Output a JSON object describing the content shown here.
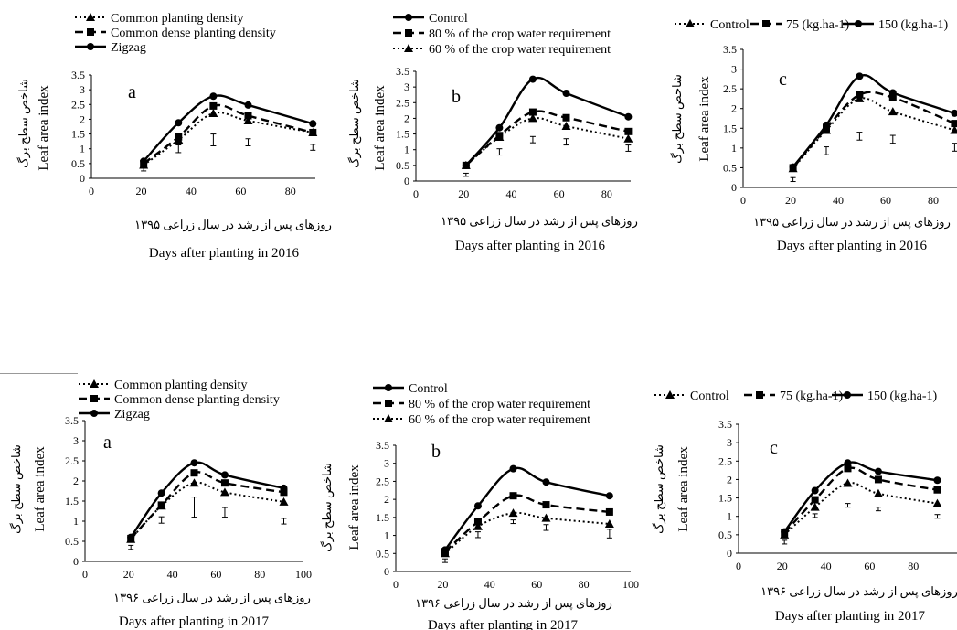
{
  "legends": {
    "density": [
      "Common planting density",
      "Common dense planting density",
      "Zigzag"
    ],
    "water": [
      "Control",
      "80 % of the crop water requirement",
      "60 % of the crop water requirement"
    ],
    "nitrogen": [
      "Control",
      "75 (kg.ha-1)",
      "150 (kg.ha-1)"
    ]
  },
  "axis_text": {
    "ylabel_persian": "شاخص سطح برگ",
    "ylabel": "Leaf area index",
    "xlabel_persian_1395": "روزهای پس از رشد در سال زراعی ۱۳۹۵",
    "xlabel_persian_1396": "روزهای پس از رشد در سال زراعی ۱۳۹۶",
    "xlabel_2016": "Days after planting in 2016",
    "xlabel_2017": "Days after planting in 2017"
  },
  "chart_data": [
    {
      "type": "line",
      "panel_label": "a",
      "legend_key": "density",
      "year_key": "2016",
      "x": [
        21,
        35,
        49,
        63,
        89
      ],
      "xlim": [
        0,
        90
      ],
      "xticks": [
        0,
        20,
        40,
        60,
        80
      ],
      "ylim": [
        0,
        3.5
      ],
      "yticks": [
        0,
        0.5,
        1,
        1.5,
        2,
        2.5,
        3,
        3.5
      ],
      "series": [
        {
          "name": "Common planting density",
          "style": "dotted",
          "marker": "triangle",
          "values": [
            0.45,
            1.3,
            2.2,
            1.95,
            1.55
          ]
        },
        {
          "name": "Common dense planting density",
          "style": "dashed",
          "marker": "square",
          "values": [
            0.5,
            1.4,
            2.45,
            2.12,
            1.55
          ]
        },
        {
          "name": "Zigzag",
          "style": "solid",
          "marker": "circle",
          "values": [
            0.58,
            1.88,
            2.78,
            2.48,
            1.85
          ]
        }
      ],
      "errors": [
        {
          "x": 21,
          "y": 0.3,
          "e": 0.05
        },
        {
          "x": 35,
          "y": 1.0,
          "e": 0.13
        },
        {
          "x": 49,
          "y": 1.3,
          "e": 0.2
        },
        {
          "x": 63,
          "y": 1.22,
          "e": 0.12
        },
        {
          "x": 89,
          "y": 1.05,
          "e": 0.1
        }
      ]
    },
    {
      "type": "line",
      "panel_label": "b",
      "legend_key": "water",
      "year_key": "2016",
      "x": [
        21,
        35,
        49,
        63,
        89
      ],
      "xlim": [
        0,
        90
      ],
      "xticks": [
        0,
        20,
        40,
        60,
        80
      ],
      "ylim": [
        0,
        3.5
      ],
      "yticks": [
        0,
        0.5,
        1,
        1.5,
        2,
        2.5,
        3,
        3.5
      ],
      "series": [
        {
          "name": "Control",
          "style": "solid",
          "marker": "circle",
          "values": [
            0.5,
            1.7,
            3.25,
            2.8,
            2.05
          ]
        },
        {
          "name": "80 % of the crop water requirement",
          "style": "dashed",
          "marker": "square",
          "values": [
            0.5,
            1.45,
            2.2,
            2.02,
            1.58
          ]
        },
        {
          "name": "60 % of the crop water requirement",
          "style": "dotted",
          "marker": "triangle",
          "values": [
            0.5,
            1.4,
            2.0,
            1.75,
            1.35
          ]
        }
      ],
      "errors": [
        {
          "x": 21,
          "y": 0.2,
          "e": 0.05
        },
        {
          "x": 35,
          "y": 0.93,
          "e": 0.1
        },
        {
          "x": 49,
          "y": 1.32,
          "e": 0.1
        },
        {
          "x": 63,
          "y": 1.25,
          "e": 0.1
        },
        {
          "x": 89,
          "y": 1.05,
          "e": 0.1
        }
      ]
    },
    {
      "type": "line",
      "panel_label": "c",
      "legend_key": "nitrogen",
      "year_key": "2016",
      "x": [
        21,
        35,
        49,
        63,
        89
      ],
      "xlim": [
        0,
        90
      ],
      "xticks": [
        0,
        20,
        40,
        60,
        80
      ],
      "ylim": [
        0,
        3.5
      ],
      "yticks": [
        0,
        0.5,
        1,
        1.5,
        2,
        2.5,
        3,
        3.5
      ],
      "series": [
        {
          "name": "Control",
          "style": "dotted",
          "marker": "triangle",
          "values": [
            0.48,
            1.45,
            2.25,
            1.92,
            1.45
          ]
        },
        {
          "name": "75 (kg.ha-1)",
          "style": "dashed",
          "marker": "square",
          "values": [
            0.5,
            1.5,
            2.35,
            2.28,
            1.62
          ]
        },
        {
          "name": "150 (kg.ha-1)",
          "style": "solid",
          "marker": "circle",
          "values": [
            0.52,
            1.58,
            2.82,
            2.4,
            1.88
          ]
        }
      ],
      "errors": [
        {
          "x": 21,
          "y": 0.2,
          "e": 0.05
        },
        {
          "x": 35,
          "y": 0.93,
          "e": 0.1
        },
        {
          "x": 49,
          "y": 1.3,
          "e": 0.1
        },
        {
          "x": 63,
          "y": 1.22,
          "e": 0.1
        },
        {
          "x": 89,
          "y": 1.02,
          "e": 0.1
        }
      ]
    },
    {
      "type": "line",
      "panel_label": "a",
      "legend_key": "density",
      "year_key": "2017",
      "x": [
        21,
        35,
        50,
        64,
        91
      ],
      "xlim": [
        0,
        100
      ],
      "xticks": [
        0,
        20,
        40,
        60,
        80,
        100
      ],
      "ylim": [
        0,
        3.5
      ],
      "yticks": [
        0,
        0.5,
        1,
        1.5,
        2,
        2.5,
        3,
        3.5
      ],
      "series": [
        {
          "name": "Common planting density",
          "style": "dotted",
          "marker": "triangle",
          "values": [
            0.55,
            1.38,
            1.95,
            1.72,
            1.48
          ]
        },
        {
          "name": "Common dense planting density",
          "style": "dashed",
          "marker": "square",
          "values": [
            0.57,
            1.4,
            2.2,
            1.95,
            1.72
          ]
        },
        {
          "name": "Zigzag",
          "style": "solid",
          "marker": "circle",
          "values": [
            0.6,
            1.7,
            2.45,
            2.15,
            1.82
          ]
        }
      ],
      "errors": [
        {
          "x": 21,
          "y": 0.35,
          "e": 0.05
        },
        {
          "x": 35,
          "y": 1.03,
          "e": 0.08
        },
        {
          "x": 50,
          "y": 1.35,
          "e": 0.25
        },
        {
          "x": 64,
          "y": 1.22,
          "e": 0.12
        },
        {
          "x": 91,
          "y": 1.0,
          "e": 0.07
        }
      ]
    },
    {
      "type": "line",
      "panel_label": "b",
      "legend_key": "water",
      "year_key": "2017",
      "x": [
        21,
        35,
        50,
        64,
        91
      ],
      "xlim": [
        0,
        100
      ],
      "xticks": [
        0,
        20,
        40,
        60,
        80,
        100
      ],
      "ylim": [
        0,
        3.5
      ],
      "yticks": [
        0,
        0.5,
        1,
        1.5,
        2,
        2.5,
        3,
        3.5
      ],
      "series": [
        {
          "name": "Control",
          "style": "solid",
          "marker": "circle",
          "values": [
            0.6,
            1.82,
            2.85,
            2.48,
            2.1
          ]
        },
        {
          "name": "80 % of the crop water requirement",
          "style": "dashed",
          "marker": "square",
          "values": [
            0.55,
            1.38,
            2.1,
            1.85,
            1.65
          ]
        },
        {
          "name": "60 % of the crop water requirement",
          "style": "dotted",
          "marker": "triangle",
          "values": [
            0.5,
            1.25,
            1.62,
            1.48,
            1.32
          ]
        }
      ],
      "errors": [
        {
          "x": 21,
          "y": 0.3,
          "e": 0.05
        },
        {
          "x": 35,
          "y": 1.02,
          "e": 0.08
        },
        {
          "x": 50,
          "y": 1.38,
          "e": 0.05
        },
        {
          "x": 64,
          "y": 1.22,
          "e": 0.08
        },
        {
          "x": 91,
          "y": 1.05,
          "e": 0.12
        }
      ]
    },
    {
      "type": "line",
      "panel_label": "c",
      "legend_key": "nitrogen",
      "year_key": "2017",
      "x": [
        21,
        35,
        50,
        64,
        91
      ],
      "xlim": [
        0,
        100
      ],
      "xticks": [
        0,
        20,
        40,
        60,
        80
      ],
      "ylim": [
        0,
        3.5
      ],
      "yticks": [
        0,
        0.5,
        1,
        1.5,
        2,
        2.5,
        3,
        3.5
      ],
      "series": [
        {
          "name": "Control",
          "style": "dotted",
          "marker": "triangle",
          "values": [
            0.5,
            1.25,
            1.9,
            1.62,
            1.35
          ]
        },
        {
          "name": "75 (kg.ha-1)",
          "style": "dashed",
          "marker": "square",
          "values": [
            0.55,
            1.45,
            2.3,
            2.0,
            1.72
          ]
        },
        {
          "name": "150 (kg.ha-1)",
          "style": "solid",
          "marker": "circle",
          "values": [
            0.58,
            1.7,
            2.45,
            2.22,
            1.98
          ]
        }
      ],
      "errors": [
        {
          "x": 21,
          "y": 0.3,
          "e": 0.05
        },
        {
          "x": 35,
          "y": 1.02,
          "e": 0.05
        },
        {
          "x": 50,
          "y": 1.3,
          "e": 0.05
        },
        {
          "x": 64,
          "y": 1.2,
          "e": 0.05
        },
        {
          "x": 91,
          "y": 1.0,
          "e": 0.05
        }
      ]
    }
  ]
}
